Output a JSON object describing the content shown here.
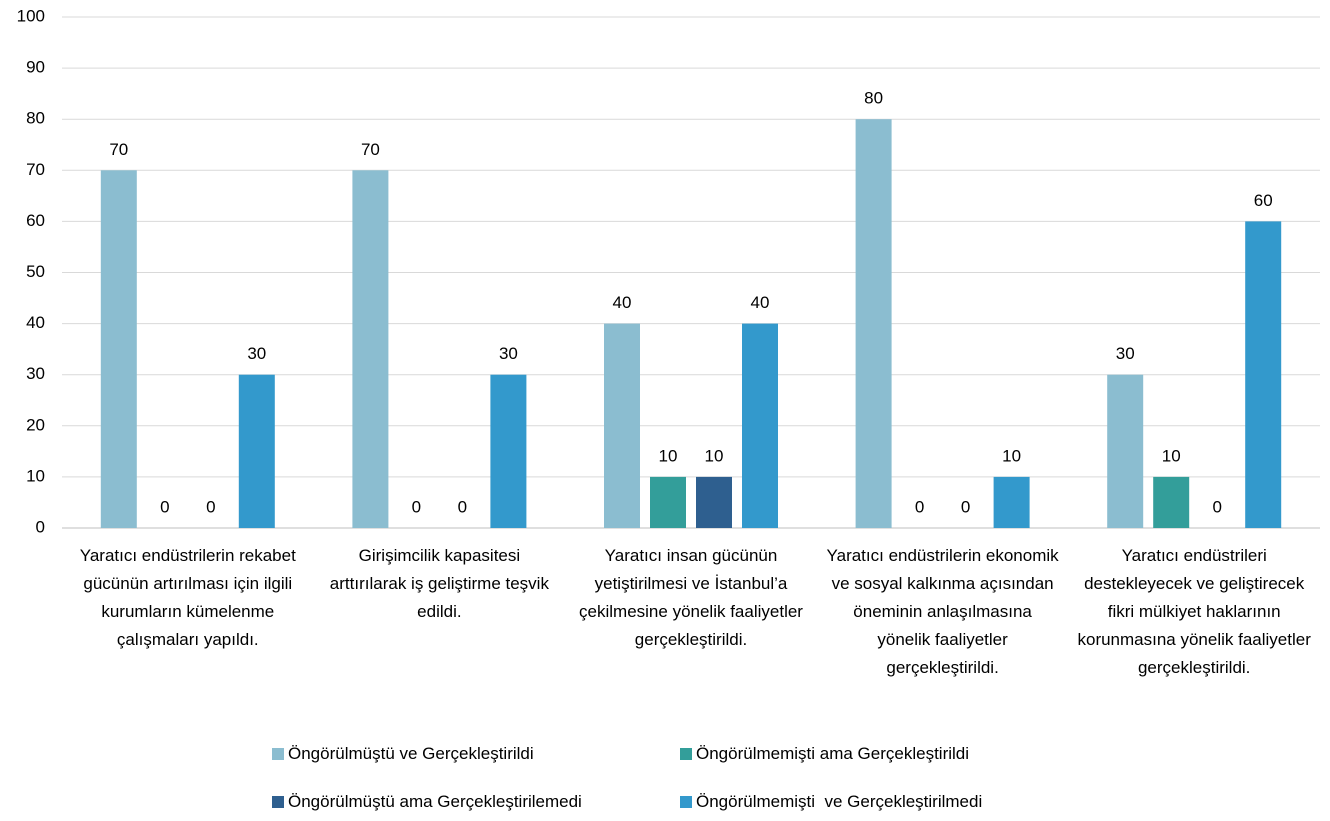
{
  "chart_data": {
    "type": "bar",
    "categories": [
      "Yaratıcı endüstrilerin rekabet gücünün artırılması için ilgili kurumların kümelenme çalışmaları yapıldı.",
      "Girişimcilik kapasitesi arttırılarak iş geliştirme teşvik edildi.",
      "Yaratıcı insan gücünün yetiştirilmesi ve İstanbul’a çekilmesine yönelik faaliyetler gerçekleştirildi.",
      "Yaratıcı endüstrilerin ekonomik ve sosyal kalkınma açısından öneminin anlaşılmasına yönelik faaliyetler gerçekleştirildi.",
      "Yaratıcı endüstrileri destekleyecek ve geliştirecek fikri mülkiyet haklarının korunmasına yönelik faaliyetler gerçekleştirildi."
    ],
    "series": [
      {
        "name": "Öngörülmüştü ve Gerçekleştirildi",
        "color": "#8bbdd0",
        "values": [
          70,
          70,
          40,
          80,
          30
        ]
      },
      {
        "name": "Öngörülmemişti ama Gerçekleştirildi",
        "color": "#339e9a",
        "values": [
          0,
          0,
          10,
          0,
          10
        ]
      },
      {
        "name": "Öngörülmüştü ama Gerçekleştirilemedi",
        "color": "#2e5f8f",
        "values": [
          0,
          0,
          10,
          0,
          0
        ]
      },
      {
        "name": "Öngörülmemişti  ve Gerçekleştirilmedi",
        "color": "#3399cc",
        "values": [
          30,
          30,
          40,
          10,
          60
        ]
      }
    ],
    "ylim": [
      0,
      100
    ],
    "yticks": [
      0,
      10,
      20,
      30,
      40,
      50,
      60,
      70,
      80,
      90,
      100
    ],
    "grid": true
  }
}
